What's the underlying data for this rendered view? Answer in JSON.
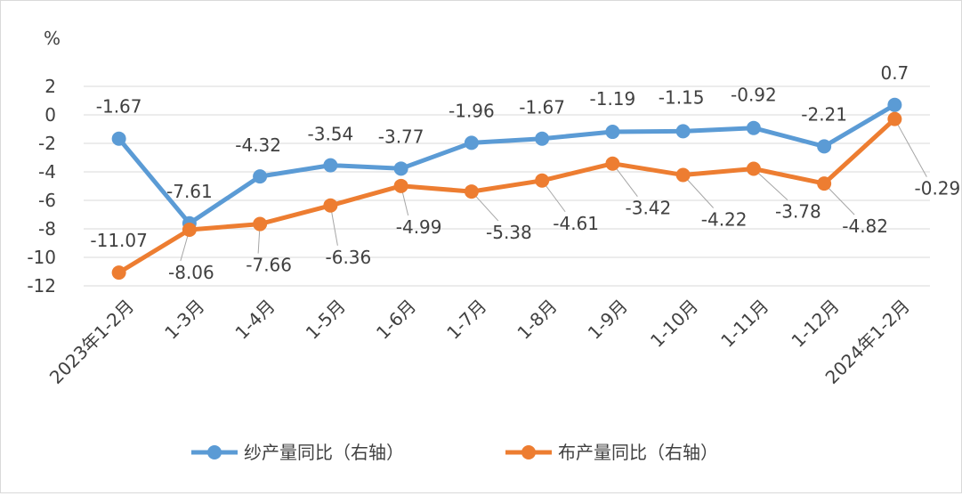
{
  "chart_data": {
    "type": "line",
    "unit_label": "%",
    "categories": [
      "2023年1-2月",
      "1-3月",
      "1-4月",
      "1-5月",
      "1-6月",
      "1-7月",
      "1-8月",
      "1-9月",
      "1-10月",
      "1-11月",
      "1-12月",
      "2024年1-2月"
    ],
    "yticks": [
      "2",
      "0",
      "-2",
      "-4",
      "-6",
      "-8",
      "-10",
      "-12"
    ],
    "ylim": [
      -12,
      2
    ],
    "grid": true,
    "legend_position": "bottom",
    "series": [
      {
        "name": "纱产量同比（右轴）",
        "color": "#5b9bd5",
        "values": [
          -1.67,
          -7.61,
          -4.32,
          -3.54,
          -3.77,
          -1.96,
          -1.67,
          -1.19,
          -1.15,
          -0.92,
          -2.21,
          0.7
        ],
        "labels": [
          "-1.67",
          "-7.61",
          "-4.32",
          "-3.54",
          "-3.77",
          "-1.96",
          "-1.67",
          "-1.19",
          "-1.15",
          "-0.92",
          "-2.21",
          "0.7"
        ]
      },
      {
        "name": "布产量同比（右轴）",
        "color": "#ed7d31",
        "values": [
          -11.07,
          -8.06,
          -7.66,
          -6.36,
          -4.99,
          -5.38,
          -4.61,
          -3.42,
          -4.22,
          -3.78,
          -4.82,
          -0.29
        ],
        "labels": [
          "-11.07",
          "-8.06",
          "-7.66",
          "-6.36",
          "-4.99",
          "-5.38",
          "-4.61",
          "-3.42",
          "-4.22",
          "-3.78",
          "-4.82",
          "-0.29"
        ]
      }
    ]
  }
}
